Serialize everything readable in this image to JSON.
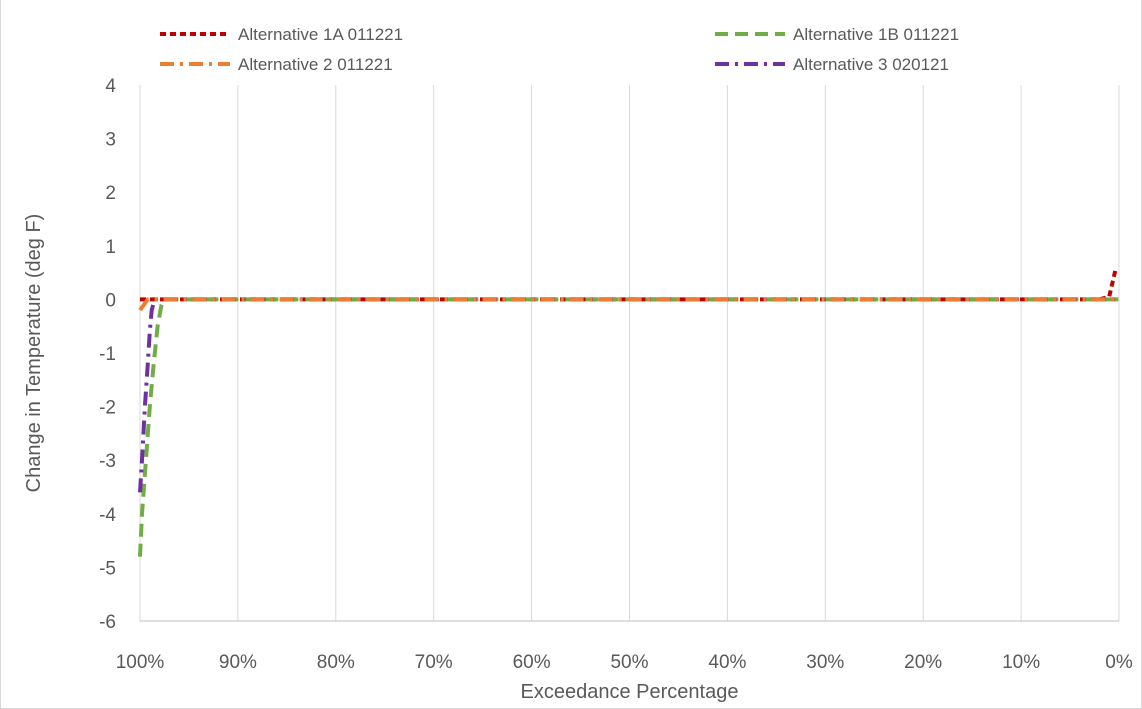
{
  "chart_data": {
    "type": "line",
    "title": "",
    "xlabel": "Exceedance Percentage",
    "ylabel": "Change in Temperature (deg F)",
    "xlim": [
      100,
      0
    ],
    "ylim": [
      -6,
      4
    ],
    "x_unit": "%",
    "xticks": [
      "100%",
      "90%",
      "80%",
      "70%",
      "60%",
      "50%",
      "40%",
      "30%",
      "20%",
      "10%",
      "0%"
    ],
    "yticks": [
      "4",
      "3",
      "2",
      "1",
      "0",
      "-1",
      "-2",
      "-3",
      "-4",
      "-5",
      "-6"
    ],
    "grid": "vertical",
    "legend_position": "top",
    "series": [
      {
        "name": "Alternative 1A 011221",
        "color": "#c00000",
        "dash": "short-dash",
        "x": [
          100,
          99.5,
          99,
          90,
          80,
          70,
          60,
          50,
          40,
          30,
          20,
          10,
          2,
          1,
          0.3
        ],
        "y": [
          0,
          0,
          0,
          0,
          0,
          0,
          0,
          0,
          0,
          0,
          0,
          0,
          0,
          0.05,
          0.6
        ]
      },
      {
        "name": "Alternative 1B 011221",
        "color": "#70ad47",
        "dash": "long-dash",
        "x": [
          100,
          99.8,
          99.4,
          99,
          98.6,
          98.2,
          97.8,
          97.5,
          90,
          80,
          70,
          60,
          50,
          40,
          30,
          20,
          10,
          0
        ],
        "y": [
          -4.8,
          -4.0,
          -3.0,
          -2.0,
          -1.2,
          -0.5,
          -0.1,
          0,
          0,
          0,
          0,
          0,
          0,
          0,
          0,
          0,
          0,
          0
        ]
      },
      {
        "name": "Alternative 2 011221",
        "color": "#ed7d31",
        "dash": "dash-dot",
        "x": [
          100,
          99.6,
          99.2,
          98.5,
          90,
          80,
          70,
          60,
          50,
          40,
          30,
          20,
          10,
          0
        ],
        "y": [
          -0.2,
          -0.1,
          0,
          0,
          0,
          0,
          0,
          0,
          0,
          0,
          0,
          0,
          0,
          0
        ]
      },
      {
        "name": "Alternative 3 020121",
        "color": "#7030a0",
        "dash": "long-dash-dot",
        "x": [
          100,
          99.8,
          99.5,
          99.2,
          99.0,
          98.8,
          98.5,
          90,
          80,
          70,
          60,
          50,
          40,
          30,
          20,
          10,
          0
        ],
        "y": [
          -3.6,
          -3.0,
          -2.0,
          -1.2,
          -0.6,
          -0.2,
          0,
          0,
          0,
          0,
          0,
          0,
          0,
          0,
          0,
          0,
          0
        ]
      }
    ]
  }
}
